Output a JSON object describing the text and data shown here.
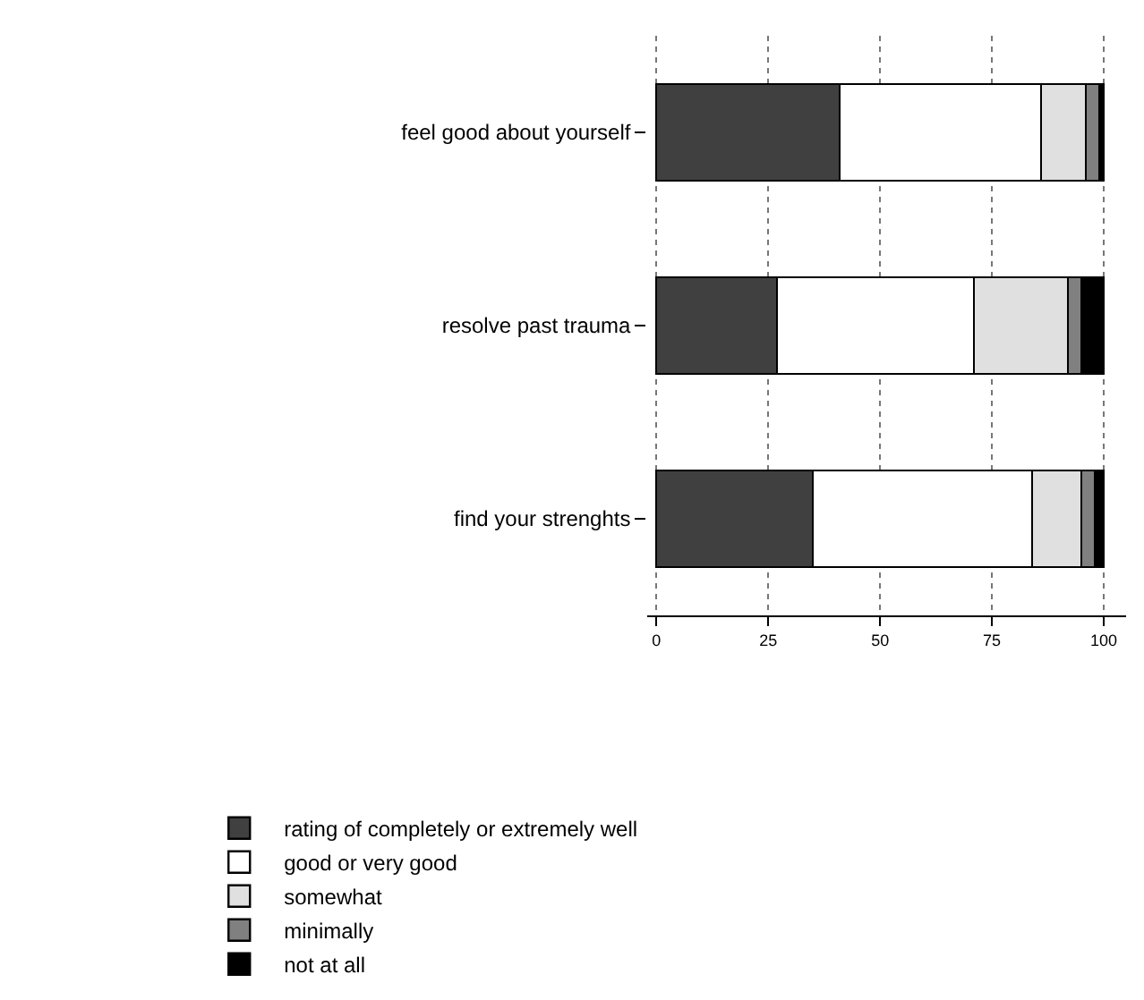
{
  "chart_data": {
    "type": "bar",
    "orientation": "horizontal",
    "stacked": true,
    "categories": [
      "feel good about yourself",
      "resolve past trauma",
      "find your strenghts"
    ],
    "series": [
      {
        "name": "rating of completely or extremely well",
        "color": "#404040",
        "values": [
          41,
          27,
          35
        ]
      },
      {
        "name": "good or very good",
        "color": "#ffffff",
        "values": [
          45,
          44,
          49
        ]
      },
      {
        "name": "somewhat",
        "color": "#e0e0e0",
        "values": [
          10,
          21,
          11
        ]
      },
      {
        "name": "minimally",
        "color": "#808080",
        "values": [
          3,
          3,
          3
        ]
      },
      {
        "name": "not at all",
        "color": "#000000",
        "values": [
          1,
          5,
          2
        ]
      }
    ],
    "xlim": [
      -2,
      105
    ],
    "xticks": [
      0,
      25,
      50,
      75,
      100
    ],
    "grid": "x",
    "legend": "bottom"
  }
}
